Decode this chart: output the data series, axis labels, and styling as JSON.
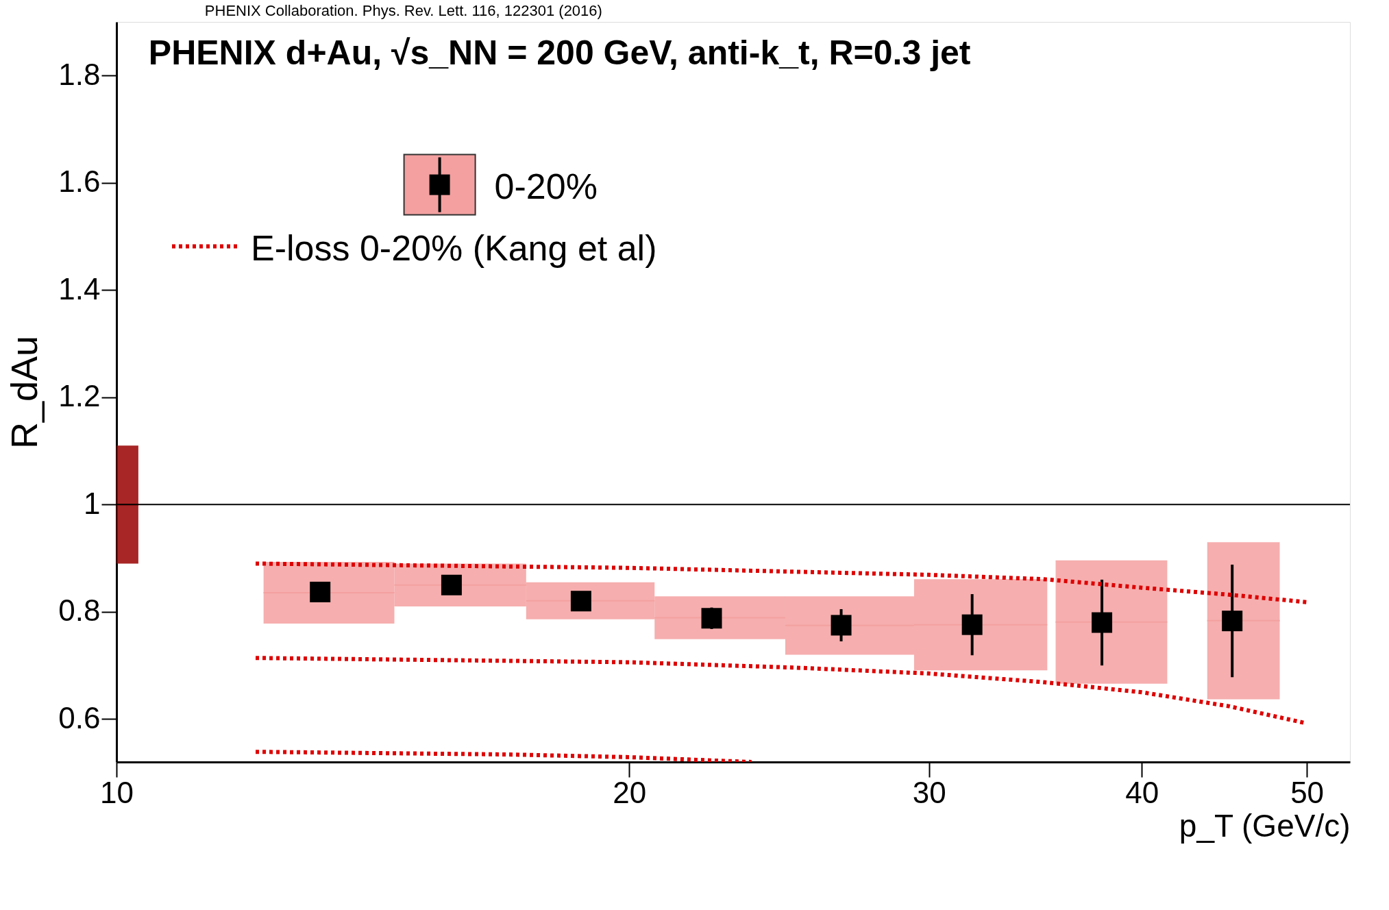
{
  "chart_data": {
    "type": "scatter",
    "title": "PHENIX Collaboration. Phys. Rev. Lett. 116, 122301 (2016)",
    "xlabel": "p_T (GeV/c)",
    "ylabel": "R_dAu",
    "annotations": [
      "PHENIX d+Au, √s_NN = 200 GeV, anti-k_t, R=0.3 jet"
    ],
    "log": "x",
    "xlim": [
      10,
      53
    ],
    "xticks": [
      10,
      20,
      30,
      40,
      50
    ],
    "ylim": [
      0.52,
      1.9
    ],
    "yticks": [
      0.6,
      0.8,
      1,
      1.2,
      1.4,
      1.6,
      1.8
    ],
    "grid": false,
    "legend": "top left",
    "ref_lines": [
      {
        "axis": "y",
        "value": 1,
        "color": "#000000"
      }
    ],
    "series": [
      {
        "type": "bar",
        "color": "#f4a0a0",
        "x": [
          13.17,
          15.73,
          18.74,
          22.36,
          26.64,
          31.8,
          37.9,
          45.2
        ],
        "base": [
          0.778,
          0.81,
          0.786,
          0.749,
          0.72,
          0.691,
          0.666,
          0.637
        ],
        "values": [
          0.115,
          0.08,
          0.069,
          0.08,
          0.109,
          0.17,
          0.23,
          0.293
        ],
        "xerrors": [
          [
            12.2,
            14.56
          ],
          [
            14.56,
            17.4
          ],
          [
            17.4,
            20.7
          ],
          [
            20.7,
            24.7
          ],
          [
            24.7,
            29.4
          ],
          [
            29.4,
            35.2
          ],
          [
            35.6,
            41.4
          ],
          [
            43.7,
            48.2
          ]
        ]
      },
      {
        "type": "bar",
        "color": "#990000",
        "x": [
          10.15
        ],
        "base": [
          0.89
        ],
        "values": [
          0.22
        ],
        "xerrors": [
          [
            10,
            10.3
          ]
        ]
      },
      {
        "name": "0-20%",
        "color": "#000000",
        "marker": "square",
        "x": [
          13.17,
          15.73,
          18.74,
          22.36,
          26.64,
          31.8,
          37.9,
          45.2
        ],
        "values": [
          0.837,
          0.85,
          0.82,
          0.788,
          0.775,
          0.776,
          0.78,
          0.783
        ],
        "errors": [
          null,
          null,
          null,
          0.02,
          0.03,
          0.057,
          0.08,
          0.105
        ]
      },
      {
        "type": "line",
        "name": "E-loss 0-20% (Kang et al)",
        "color": "#dd0000",
        "line_style": "dotted",
        "x": [
          12.07,
          20,
          30,
          35,
          40,
          45,
          50
        ],
        "values": [
          0.89,
          0.882,
          0.869,
          0.861,
          0.845,
          0.832,
          0.818
        ]
      },
      {
        "type": "line",
        "color": "#dd0000",
        "line_style": "dotted",
        "x": [
          12.07,
          20,
          25,
          30,
          35,
          40,
          45,
          50
        ],
        "values": [
          0.714,
          0.706,
          0.696,
          0.685,
          0.669,
          0.65,
          0.624,
          0.592
        ]
      },
      {
        "type": "line",
        "color": "#dd0000",
        "line_style": "dotted",
        "x": [
          12.07,
          17,
          20,
          23.6
        ],
        "values": [
          0.539,
          0.534,
          0.529,
          0.52
        ]
      }
    ]
  }
}
